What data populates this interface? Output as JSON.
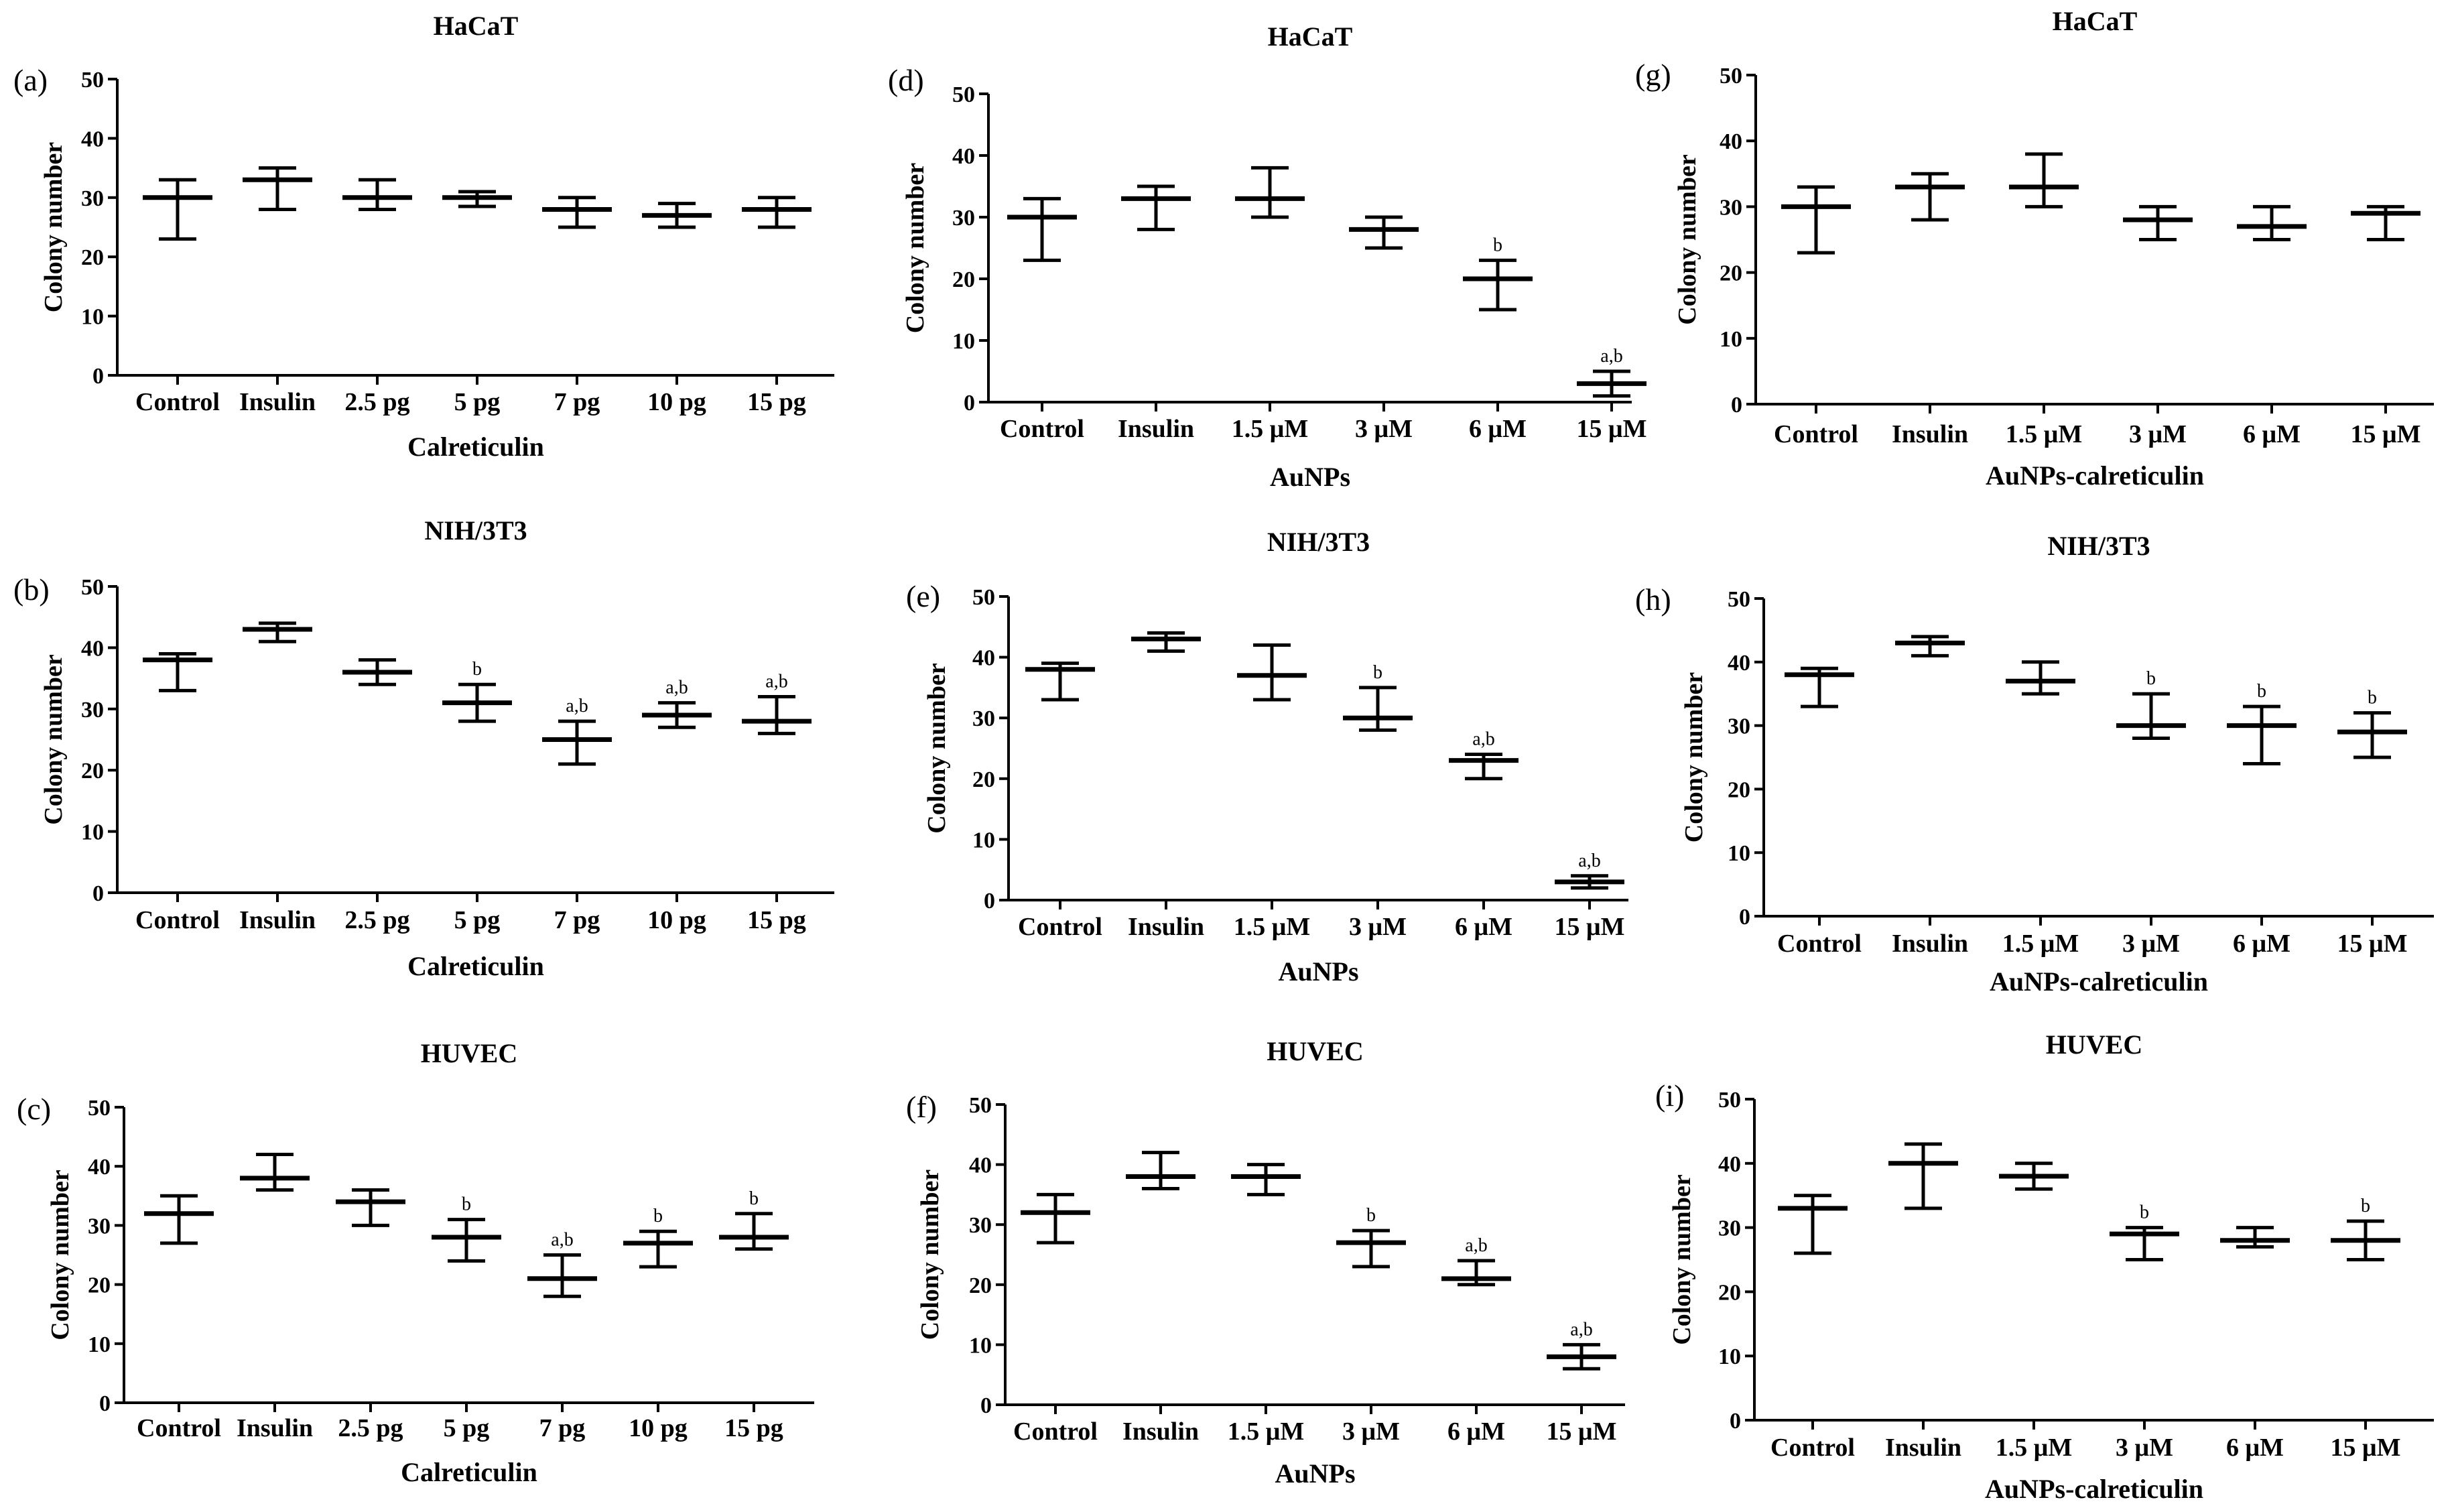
{
  "figure": {
    "y_axis_label": "Colony number"
  },
  "chart_data": [
    {
      "panel": "(a)",
      "title": "HaCaT",
      "type": "bar",
      "style": "mean-range error bars",
      "xlabel": "Calreticulin",
      "ylabel": "Colony number",
      "ylim": [
        0,
        50
      ],
      "yticks": [
        0,
        10,
        20,
        30,
        40,
        50
      ],
      "categories": [
        "Control",
        "Insulin",
        "2.5 pg",
        "5 pg",
        "7 pg",
        "10 pg",
        "15 pg"
      ],
      "values": [
        30,
        33,
        30,
        30,
        28,
        27,
        28
      ],
      "lows": [
        23,
        28,
        28,
        28.5,
        25,
        25,
        25
      ],
      "highs": [
        33,
        35,
        33,
        31,
        30,
        29,
        30
      ],
      "annotations": [
        "",
        "",
        "",
        "",
        "",
        "",
        ""
      ]
    },
    {
      "panel": "(b)",
      "title": "NIH/3T3",
      "type": "bar",
      "style": "mean-range error bars",
      "xlabel": "Calreticulin",
      "ylabel": "Colony number",
      "ylim": [
        0,
        50
      ],
      "yticks": [
        0,
        10,
        20,
        30,
        40,
        50
      ],
      "categories": [
        "Control",
        "Insulin",
        "2.5 pg",
        "5 pg",
        "7 pg",
        "10 pg",
        "15 pg"
      ],
      "values": [
        38,
        43,
        36,
        31,
        25,
        29,
        28
      ],
      "lows": [
        33,
        41,
        34,
        28,
        21,
        27,
        26
      ],
      "highs": [
        39,
        44,
        38,
        34,
        28,
        31,
        32
      ],
      "annotations": [
        "",
        "",
        "",
        "b",
        "a,b",
        "a,b",
        "a,b"
      ]
    },
    {
      "panel": "(c)",
      "title": "HUVEC",
      "type": "bar",
      "style": "mean-range error bars",
      "xlabel": "Calreticulin",
      "ylabel": "Colony number",
      "ylim": [
        0,
        50
      ],
      "yticks": [
        0,
        10,
        20,
        30,
        40,
        50
      ],
      "categories": [
        "Control",
        "Insulin",
        "2.5 pg",
        "5 pg",
        "7 pg",
        "10 pg",
        "15 pg"
      ],
      "values": [
        32,
        38,
        34,
        28,
        21,
        27,
        28
      ],
      "lows": [
        27,
        36,
        30,
        24,
        18,
        23,
        26
      ],
      "highs": [
        35,
        42,
        36,
        31,
        25,
        29,
        32
      ],
      "annotations": [
        "",
        "",
        "",
        "b",
        "a,b",
        "b",
        "b"
      ]
    },
    {
      "panel": "(d)",
      "title": "HaCaT",
      "type": "bar",
      "style": "mean-range error bars",
      "xlabel": "AuNPs",
      "ylabel": "Colony number",
      "ylim": [
        0,
        50
      ],
      "yticks": [
        0,
        10,
        20,
        30,
        40,
        50
      ],
      "categories": [
        "Control",
        "Insulin",
        "1.5 μM",
        "3 μM",
        "6 μM",
        "15 μM"
      ],
      "values": [
        30,
        33,
        33,
        28,
        20,
        3
      ],
      "lows": [
        23,
        28,
        30,
        25,
        15,
        1
      ],
      "highs": [
        33,
        35,
        38,
        30,
        23,
        5
      ],
      "annotations": [
        "",
        "",
        "",
        "",
        "b",
        "a,b"
      ]
    },
    {
      "panel": "(e)",
      "title": "NIH/3T3",
      "type": "bar",
      "style": "mean-range error bars",
      "xlabel": "AuNPs",
      "ylabel": "Colony number",
      "ylim": [
        0,
        50
      ],
      "yticks": [
        0,
        10,
        20,
        30,
        40,
        50
      ],
      "categories": [
        "Control",
        "Insulin",
        "1.5 μM",
        "3 μM",
        "6 μM",
        "15 μM"
      ],
      "values": [
        38,
        43,
        37,
        30,
        23,
        3
      ],
      "lows": [
        33,
        41,
        33,
        28,
        20,
        2
      ],
      "highs": [
        39,
        44,
        42,
        35,
        24,
        4
      ],
      "annotations": [
        "",
        "",
        "",
        "b",
        "a,b",
        "a,b"
      ]
    },
    {
      "panel": "(f)",
      "title": "HUVEC",
      "type": "bar",
      "style": "mean-range error bars",
      "xlabel": "AuNPs",
      "ylabel": "Colony number",
      "ylim": [
        0,
        50
      ],
      "yticks": [
        0,
        10,
        20,
        30,
        40,
        50
      ],
      "categories": [
        "Control",
        "Insulin",
        "1.5 μM",
        "3 μM",
        "6 μM",
        "15 μM"
      ],
      "values": [
        32,
        38,
        38,
        27,
        21,
        8
      ],
      "lows": [
        27,
        36,
        35,
        23,
        20,
        6
      ],
      "highs": [
        35,
        42,
        40,
        29,
        24,
        10
      ],
      "annotations": [
        "",
        "",
        "",
        "b",
        "a,b",
        "a,b"
      ]
    },
    {
      "panel": "(g)",
      "title": "HaCaT",
      "type": "bar",
      "style": "mean-range error bars",
      "xlabel": "AuNPs-calreticulin",
      "ylabel": "Colony number",
      "ylim": [
        0,
        50
      ],
      "yticks": [
        0,
        10,
        20,
        30,
        40,
        50
      ],
      "categories": [
        "Control",
        "Insulin",
        "1.5 μM",
        "3 μM",
        "6 μM",
        "15 μM"
      ],
      "values": [
        30,
        33,
        33,
        28,
        27,
        29
      ],
      "lows": [
        23,
        28,
        30,
        25,
        25,
        25
      ],
      "highs": [
        33,
        35,
        38,
        30,
        30,
        30
      ],
      "annotations": [
        "",
        "",
        "",
        "",
        "",
        ""
      ]
    },
    {
      "panel": "(h)",
      "title": "NIH/3T3",
      "type": "bar",
      "style": "mean-range error bars",
      "xlabel": "AuNPs-calreticulin",
      "ylabel": "Colony number",
      "ylim": [
        0,
        50
      ],
      "yticks": [
        0,
        10,
        20,
        30,
        40,
        50
      ],
      "categories": [
        "Control",
        "Insulin",
        "1.5 μM",
        "3 μM",
        "6 μM",
        "15 μM"
      ],
      "values": [
        38,
        43,
        37,
        30,
        30,
        29
      ],
      "lows": [
        33,
        41,
        35,
        28,
        24,
        25
      ],
      "highs": [
        39,
        44,
        40,
        35,
        33,
        32
      ],
      "annotations": [
        "",
        "",
        "",
        "b",
        "b",
        "b"
      ]
    },
    {
      "panel": "(i)",
      "title": "HUVEC",
      "type": "bar",
      "style": "mean-range error bars",
      "xlabel": "AuNPs-calreticulin",
      "ylabel": "Colony number",
      "ylim": [
        0,
        50
      ],
      "yticks": [
        0,
        10,
        20,
        30,
        40,
        50
      ],
      "categories": [
        "Control",
        "Insulin",
        "1.5 μM",
        "3 μM",
        "6 μM",
        "15 μM"
      ],
      "values": [
        33,
        40,
        38,
        29,
        28,
        28
      ],
      "lows": [
        26,
        33,
        36,
        25,
        27,
        25
      ],
      "highs": [
        35,
        43,
        40,
        30,
        30,
        31
      ],
      "annotations": [
        "",
        "",
        "",
        "b",
        "",
        "b"
      ]
    }
  ]
}
